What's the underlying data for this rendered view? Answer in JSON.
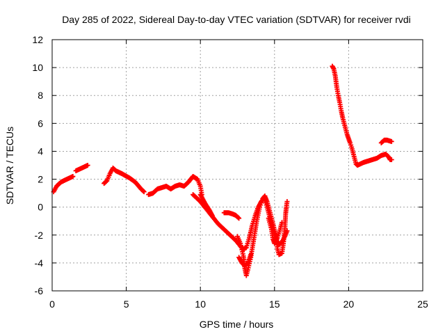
{
  "chart_data": {
    "type": "scatter",
    "title": "Day 285 of 2022, Sidereal Day-to-day VTEC variation (SDTVAR) for receiver rvdi",
    "xlabel": "GPS time / hours",
    "ylabel": "SDTVAR / TECUs",
    "xlim": [
      0,
      25
    ],
    "ylim": [
      -6,
      12
    ],
    "xticks": [
      0,
      5,
      10,
      15,
      20,
      25
    ],
    "yticks": [
      -6,
      -4,
      -2,
      0,
      2,
      4,
      6,
      8,
      10,
      12
    ],
    "grid": true,
    "marker": "+",
    "series_color": "#ff0000",
    "series": [
      {
        "name": "SDTVAR",
        "segments": [
          [
            [
              0.1,
              1.1
            ],
            [
              0.3,
              1.5
            ],
            [
              0.6,
              1.8
            ],
            [
              1.0,
              2.0
            ],
            [
              1.4,
              2.2
            ]
          ],
          [
            [
              1.6,
              2.6
            ],
            [
              2.0,
              2.8
            ],
            [
              2.4,
              3.0
            ]
          ],
          [
            [
              3.5,
              1.7
            ],
            [
              3.7,
              1.9
            ],
            [
              3.9,
              2.4
            ],
            [
              4.1,
              2.8
            ],
            [
              4.3,
              2.6
            ],
            [
              4.7,
              2.4
            ],
            [
              5.2,
              2.1
            ],
            [
              5.6,
              1.8
            ],
            [
              6.0,
              1.3
            ],
            [
              6.2,
              1.1
            ]
          ],
          [
            [
              6.5,
              0.9
            ],
            [
              6.8,
              1.0
            ],
            [
              7.1,
              1.3
            ],
            [
              7.4,
              1.4
            ],
            [
              7.7,
              1.5
            ],
            [
              8.0,
              1.3
            ],
            [
              8.3,
              1.5
            ],
            [
              8.6,
              1.6
            ],
            [
              8.9,
              1.5
            ],
            [
              9.2,
              1.8
            ],
            [
              9.5,
              2.2
            ],
            [
              9.8,
              2.0
            ],
            [
              10.0,
              1.5
            ],
            [
              10.1,
              0.9
            ]
          ],
          [
            [
              9.5,
              0.9
            ],
            [
              9.8,
              0.6
            ],
            [
              10.0,
              0.4
            ],
            [
              10.3,
              0.0
            ],
            [
              10.6,
              -0.4
            ],
            [
              10.9,
              -0.8
            ],
            [
              11.2,
              -1.2
            ],
            [
              11.6,
              -1.6
            ],
            [
              12.0,
              -2.0
            ],
            [
              12.4,
              -2.4
            ],
            [
              12.7,
              -2.8
            ],
            [
              12.9,
              -3.0
            ],
            [
              13.1,
              -2.9
            ],
            [
              13.3,
              -2.2
            ],
            [
              13.5,
              -1.3
            ],
            [
              13.7,
              -0.6
            ],
            [
              13.9,
              0.0
            ],
            [
              14.1,
              0.4
            ],
            [
              14.3,
              0.6
            ],
            [
              14.5,
              0.0
            ],
            [
              14.7,
              -0.8
            ],
            [
              14.9,
              -1.6
            ],
            [
              15.1,
              -2.3
            ],
            [
              15.3,
              -2.7
            ],
            [
              15.5,
              -2.5
            ],
            [
              15.7,
              -2.1
            ],
            [
              15.85,
              -1.7
            ]
          ],
          [
            [
              10.0,
              0.9
            ],
            [
              10.3,
              0.3
            ],
            [
              10.6,
              -0.2
            ],
            [
              10.8,
              -0.6
            ]
          ],
          [
            [
              11.6,
              -0.4
            ],
            [
              11.9,
              -0.4
            ],
            [
              12.2,
              -0.5
            ],
            [
              12.4,
              -0.6
            ],
            [
              12.6,
              -0.8
            ]
          ],
          [
            [
              12.5,
              -2.1
            ],
            [
              12.7,
              -2.6
            ],
            [
              12.9,
              -3.5
            ],
            [
              13.0,
              -4.4
            ],
            [
              13.1,
              -4.9
            ],
            [
              13.2,
              -4.5
            ],
            [
              13.4,
              -3.6
            ],
            [
              13.6,
              -2.3
            ],
            [
              13.8,
              -1.0
            ],
            [
              14.0,
              0.0
            ],
            [
              14.2,
              0.6
            ],
            [
              14.35,
              0.8
            ],
            [
              14.5,
              0.4
            ],
            [
              14.7,
              -0.4
            ],
            [
              14.9,
              -1.2
            ],
            [
              15.1,
              -2.1
            ],
            [
              15.2,
              -3.0
            ],
            [
              15.3,
              -3.4
            ],
            [
              15.5,
              -3.3
            ],
            [
              15.6,
              -2.6
            ],
            [
              15.7,
              -1.5
            ],
            [
              15.75,
              -0.5
            ],
            [
              15.8,
              0.0
            ],
            [
              15.85,
              0.4
            ]
          ],
          [
            [
              12.6,
              -3.6
            ],
            [
              12.8,
              -4.0
            ],
            [
              13.0,
              -4.2
            ],
            [
              13.2,
              -4.0
            ],
            [
              13.4,
              -3.4
            ]
          ],
          [
            [
              14.6,
              -0.8
            ],
            [
              14.8,
              -1.6
            ],
            [
              14.9,
              -2.3
            ],
            [
              15.0,
              -2.6
            ],
            [
              15.2,
              -2.2
            ],
            [
              15.4,
              -1.5
            ],
            [
              15.5,
              -1.1
            ]
          ],
          [
            [
              18.9,
              10.1
            ],
            [
              19.0,
              9.9
            ],
            [
              19.1,
              9.4
            ],
            [
              19.2,
              8.6
            ],
            [
              19.3,
              8.0
            ],
            [
              19.4,
              7.5
            ],
            [
              19.5,
              6.9
            ],
            [
              19.6,
              6.4
            ],
            [
              19.7,
              6.0
            ],
            [
              19.8,
              5.6
            ],
            [
              19.9,
              5.2
            ],
            [
              20.0,
              4.9
            ],
            [
              20.1,
              4.6
            ],
            [
              20.2,
              4.3
            ],
            [
              20.3,
              3.9
            ],
            [
              20.4,
              3.5
            ],
            [
              20.5,
              3.1
            ],
            [
              20.6,
              3.0
            ],
            [
              20.8,
              3.1
            ],
            [
              21.0,
              3.2
            ],
            [
              21.3,
              3.3
            ],
            [
              21.6,
              3.4
            ],
            [
              21.9,
              3.5
            ],
            [
              22.2,
              3.7
            ],
            [
              22.5,
              3.8
            ],
            [
              22.7,
              3.6
            ],
            [
              22.8,
              3.4
            ],
            [
              22.9,
              3.4
            ]
          ],
          [
            [
              22.2,
              4.6
            ],
            [
              22.4,
              4.8
            ],
            [
              22.6,
              4.8
            ],
            [
              22.9,
              4.7
            ]
          ]
        ]
      }
    ]
  }
}
